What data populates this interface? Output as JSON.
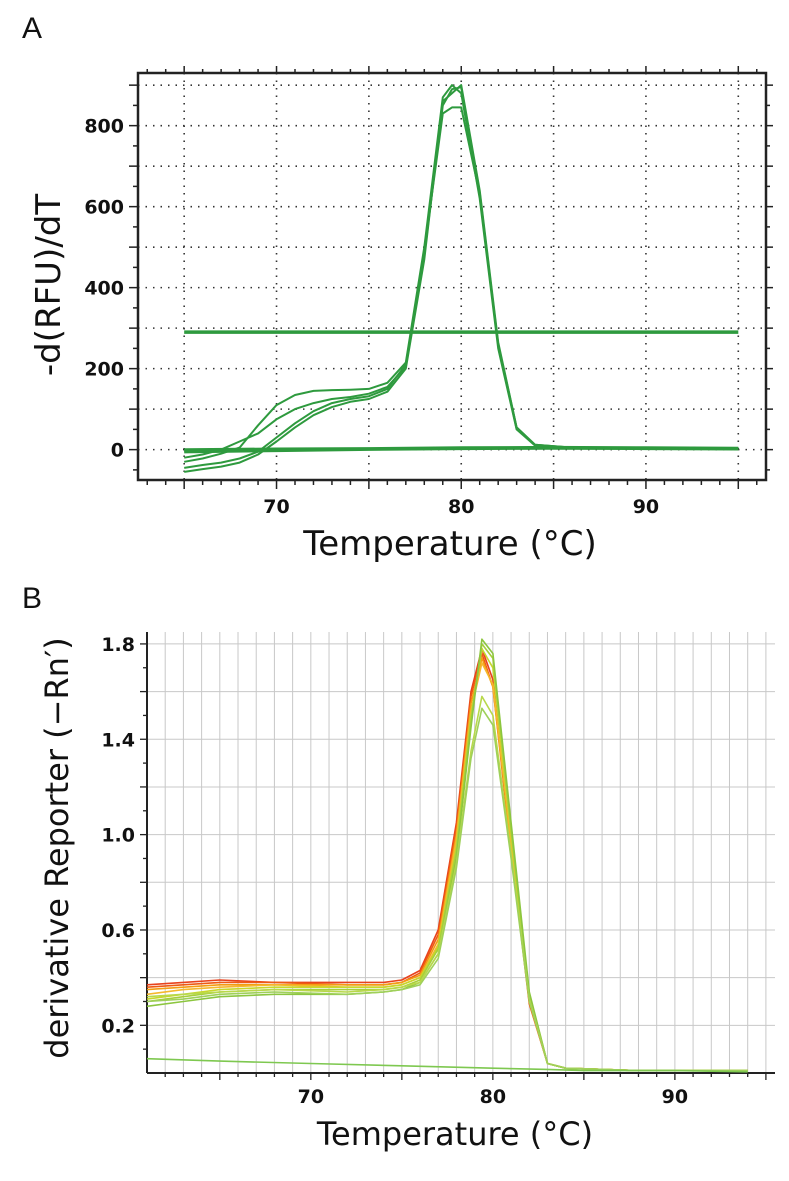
{
  "panels": {
    "a": {
      "letter": "A"
    },
    "b": {
      "letter": "B"
    }
  },
  "chart_data": [
    {
      "type": "line",
      "panel": "A",
      "xlabel": "Temperature  (°C)",
      "ylabel": "-d(RFU)/dT",
      "xlim": [
        62.5,
        96.5
      ],
      "ylim": [
        -75,
        930
      ],
      "xticks": [
        70,
        80,
        90
      ],
      "yticks": [
        0,
        200,
        400,
        600,
        800
      ],
      "grid": "dotted",
      "line_color": "#2e9a3e",
      "threshold": 290,
      "series": [
        {
          "x": [
            65,
            66,
            67,
            68,
            69,
            70,
            71,
            72,
            73,
            74,
            75,
            76,
            77,
            78,
            79,
            79.5,
            80,
            81,
            82,
            83,
            84,
            86,
            90,
            95
          ],
          "y": [
            -30,
            -22,
            -10,
            5,
            60,
            110,
            135,
            145,
            147,
            148,
            150,
            165,
            215,
            500,
            870,
            900,
            880,
            620,
            250,
            50,
            10,
            5,
            4,
            4
          ]
        },
        {
          "x": [
            65,
            66,
            67,
            68,
            69,
            70,
            71,
            72,
            73,
            74,
            75,
            76,
            77,
            78,
            79,
            79.5,
            80,
            81,
            82,
            83,
            84,
            86,
            90,
            95
          ],
          "y": [
            -45,
            -38,
            -32,
            -22,
            -5,
            30,
            65,
            95,
            115,
            125,
            132,
            150,
            210,
            490,
            830,
            845,
            845,
            630,
            260,
            55,
            12,
            5,
            4,
            4
          ]
        },
        {
          "x": [
            65,
            66,
            67,
            68,
            69,
            70,
            71,
            72,
            73,
            74,
            75,
            76,
            77,
            78,
            79,
            79.5,
            80,
            81,
            82,
            83,
            84,
            86,
            90,
            95
          ],
          "y": [
            -55,
            -48,
            -42,
            -32,
            -12,
            20,
            55,
            85,
            105,
            118,
            125,
            143,
            200,
            470,
            860,
            880,
            900,
            640,
            265,
            55,
            12,
            5,
            4,
            4
          ]
        },
        {
          "x": [
            65,
            66,
            67,
            68,
            69,
            70,
            71,
            72,
            73,
            74,
            75,
            76,
            77,
            78,
            79,
            79.5,
            80,
            81,
            82,
            83,
            84,
            86,
            90,
            95
          ],
          "y": [
            -20,
            -12,
            0,
            20,
            40,
            75,
            100,
            115,
            125,
            130,
            138,
            155,
            205,
            480,
            850,
            890,
            895,
            635,
            258,
            52,
            11,
            5,
            4,
            4
          ]
        },
        {
          "x": [
            65,
            70,
            75,
            80,
            85,
            90,
            95
          ],
          "y": [
            0,
            2,
            3,
            5,
            6,
            5,
            4
          ]
        },
        {
          "x": [
            65,
            70,
            75,
            80,
            85,
            90,
            95
          ],
          "y": [
            -3,
            -1,
            1,
            3,
            4,
            3,
            2
          ]
        },
        {
          "x": [
            65,
            70,
            75,
            80,
            85,
            90,
            95
          ],
          "y": [
            -6,
            -3,
            0,
            2,
            3,
            2,
            1
          ]
        }
      ]
    },
    {
      "type": "line",
      "panel": "B",
      "xlabel": "Temperature (°C)",
      "ylabel": "derivative Reporter (−Rn′)",
      "xlim": [
        61,
        95.5
      ],
      "ylim": [
        0.0,
        1.85
      ],
      "xticks": [
        70,
        80,
        90
      ],
      "yticks": [
        0.2,
        0.6,
        1.0,
        1.4,
        1.8
      ],
      "grid": "solid",
      "series": [
        {
          "color": "#e8421c",
          "x": [
            61,
            63,
            65,
            68,
            72,
            74,
            75,
            76,
            77,
            78,
            78.8,
            79.4,
            80,
            81,
            82,
            83,
            84,
            88,
            94
          ],
          "y": [
            0.37,
            0.38,
            0.39,
            0.38,
            0.38,
            0.38,
            0.39,
            0.43,
            0.6,
            1.05,
            1.6,
            1.78,
            1.65,
            0.95,
            0.3,
            0.04,
            0.02,
            0.01,
            0.01
          ]
        },
        {
          "color": "#ee5a14",
          "x": [
            61,
            63,
            65,
            68,
            72,
            74,
            75,
            76,
            77,
            78,
            78.8,
            79.4,
            80,
            81,
            82,
            83,
            84,
            88,
            94
          ],
          "y": [
            0.36,
            0.37,
            0.38,
            0.38,
            0.37,
            0.37,
            0.38,
            0.42,
            0.58,
            1.03,
            1.58,
            1.76,
            1.62,
            0.93,
            0.29,
            0.04,
            0.02,
            0.01,
            0.01
          ]
        },
        {
          "color": "#f39c12",
          "x": [
            61,
            63,
            65,
            68,
            72,
            74,
            75,
            76,
            77,
            78,
            78.8,
            79.4,
            80,
            81,
            82,
            83,
            84,
            88,
            94
          ],
          "y": [
            0.35,
            0.36,
            0.37,
            0.37,
            0.37,
            0.37,
            0.38,
            0.41,
            0.56,
            1.0,
            1.55,
            1.74,
            1.62,
            0.95,
            0.3,
            0.04,
            0.02,
            0.01,
            0.01
          ]
        },
        {
          "color": "#f5b82e",
          "x": [
            61,
            63,
            65,
            68,
            72,
            74,
            75,
            76,
            77,
            78,
            78.8,
            79.4,
            80,
            81,
            82,
            83,
            84,
            88,
            94
          ],
          "y": [
            0.33,
            0.35,
            0.36,
            0.37,
            0.36,
            0.36,
            0.37,
            0.4,
            0.54,
            0.98,
            1.52,
            1.72,
            1.63,
            0.97,
            0.31,
            0.04,
            0.02,
            0.01,
            0.01
          ]
        },
        {
          "color": "#c7d72c",
          "x": [
            61,
            63,
            65,
            68,
            72,
            74,
            75,
            76,
            77,
            78,
            78.8,
            79.4,
            80,
            81,
            82,
            83,
            84,
            88,
            94
          ],
          "y": [
            0.31,
            0.33,
            0.35,
            0.36,
            0.36,
            0.36,
            0.37,
            0.4,
            0.53,
            0.95,
            1.5,
            1.78,
            1.7,
            1.0,
            0.32,
            0.04,
            0.02,
            0.01,
            0.01
          ]
        },
        {
          "color": "#a6cf3b",
          "x": [
            61,
            63,
            65,
            68,
            72,
            74,
            75,
            76,
            77,
            78,
            78.8,
            79.4,
            80,
            81,
            82,
            83,
            84,
            88,
            94
          ],
          "y": [
            0.3,
            0.32,
            0.34,
            0.35,
            0.35,
            0.35,
            0.36,
            0.39,
            0.52,
            0.93,
            1.48,
            1.8,
            1.74,
            1.02,
            0.33,
            0.04,
            0.02,
            0.01,
            0.01
          ]
        },
        {
          "color": "#8cc63f",
          "x": [
            61,
            63,
            65,
            68,
            72,
            74,
            75,
            76,
            77,
            78,
            78.8,
            79.4,
            80,
            81,
            82,
            83,
            84,
            88,
            94
          ],
          "y": [
            0.28,
            0.3,
            0.32,
            0.33,
            0.33,
            0.34,
            0.35,
            0.38,
            0.5,
            0.9,
            1.45,
            1.82,
            1.76,
            1.05,
            0.34,
            0.04,
            0.02,
            0.01,
            0.01
          ]
        },
        {
          "color": "#b8d84a",
          "x": [
            61,
            63,
            65,
            68,
            72,
            74,
            75,
            76,
            77,
            78,
            78.8,
            79.4,
            80,
            81,
            82,
            83,
            84,
            88,
            94
          ],
          "y": [
            0.32,
            0.33,
            0.34,
            0.35,
            0.34,
            0.35,
            0.36,
            0.38,
            0.5,
            0.88,
            1.35,
            1.58,
            1.5,
            0.92,
            0.31,
            0.04,
            0.02,
            0.01,
            0.01
          ]
        },
        {
          "color": "#9fd05a",
          "x": [
            61,
            63,
            65,
            68,
            72,
            74,
            75,
            76,
            77,
            78,
            78.8,
            79.4,
            80,
            81,
            82,
            83,
            84,
            88,
            94
          ],
          "y": [
            0.3,
            0.31,
            0.33,
            0.34,
            0.33,
            0.34,
            0.35,
            0.37,
            0.48,
            0.86,
            1.32,
            1.53,
            1.46,
            0.9,
            0.3,
            0.04,
            0.02,
            0.01,
            0.01
          ]
        },
        {
          "color": "#7ec850",
          "x": [
            61,
            65,
            70,
            75,
            80,
            83,
            85,
            90,
            94
          ],
          "y": [
            0.06,
            0.05,
            0.04,
            0.03,
            0.02,
            0.015,
            0.01,
            0.01,
            0.005
          ]
        }
      ]
    }
  ]
}
